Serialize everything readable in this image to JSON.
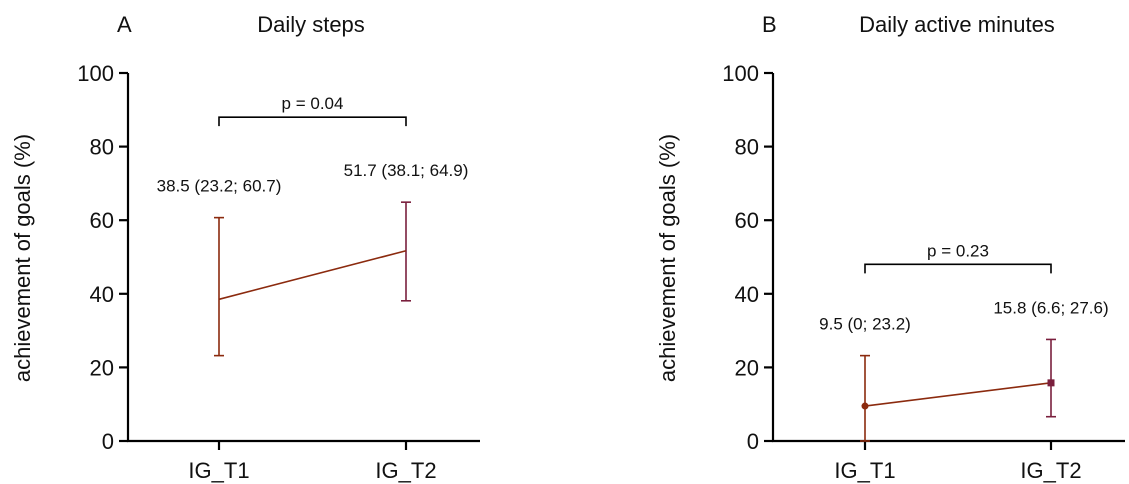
{
  "chart_data": [
    {
      "type": "line",
      "panel_letter": "A",
      "title": "Daily steps",
      "ylabel": "achievement of goals (%)",
      "xlabel": "",
      "categories": [
        "IG_T1",
        "IG_T2"
      ],
      "ylim": [
        0,
        100
      ],
      "yticks": [
        0,
        20,
        40,
        60,
        80,
        100
      ],
      "grid": false,
      "series": [
        {
          "values": [
            38.5,
            51.7
          ],
          "lower": [
            23.2,
            38.1
          ],
          "upper": [
            60.7,
            64.9
          ],
          "line_color": "#8b2a0e",
          "error_colors": [
            "#8b2a0e",
            "#7a1f3d"
          ],
          "markers": [
            "none",
            "none"
          ]
        }
      ],
      "annotations": [
        "38.5 (23.2; 60.7)",
        "51.7 (38.1; 64.9)"
      ],
      "bracket": {
        "label": "p = 0.04",
        "y": 88
      }
    },
    {
      "type": "line",
      "panel_letter": "B",
      "title": "Daily active minutes",
      "ylabel": "achievement of goals (%)",
      "xlabel": "",
      "categories": [
        "IG_T1",
        "IG_T2"
      ],
      "ylim": [
        0,
        100
      ],
      "yticks": [
        0,
        20,
        40,
        60,
        80,
        100
      ],
      "grid": false,
      "series": [
        {
          "values": [
            9.5,
            15.8
          ],
          "lower": [
            0,
            6.6
          ],
          "upper": [
            23.2,
            27.6
          ],
          "line_color": "#8b2a0e",
          "error_colors": [
            "#8b2a0e",
            "#7a1f3d"
          ],
          "markers": [
            "circle",
            "square"
          ]
        }
      ],
      "annotations": [
        "9.5 (0; 23.2)",
        "15.8 (6.6; 27.6)"
      ],
      "bracket": {
        "label": "p = 0.23",
        "y": 48
      }
    }
  ]
}
